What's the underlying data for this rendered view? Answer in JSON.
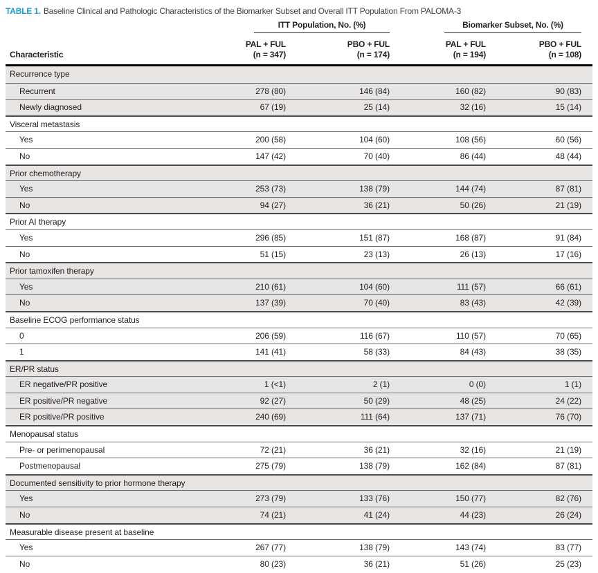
{
  "title": {
    "label": "TABLE 1.",
    "text": "Baseline Clinical and Pathologic Characteristics of the Biomarker Subset and Overall ITT Population From PALOMA-3"
  },
  "colors": {
    "accent_blue": "#1e9bd2",
    "shaded_row": "#e6e5e3",
    "rule_black": "#000000"
  },
  "table": {
    "group_headers": [
      {
        "label": "ITT Population, No. (%)"
      },
      {
        "label": "Biomarker Subset, No. (%)"
      }
    ],
    "column_headers": [
      {
        "line1": "Characteristic",
        "line2": ""
      },
      {
        "line1": "PAL + FUL",
        "line2": "(n = 347)"
      },
      {
        "line1": "PBO + FUL",
        "line2": "(n = 174)"
      },
      {
        "line1": "PAL + FUL",
        "line2": "(n = 194)"
      },
      {
        "line1": "PBO + FUL",
        "line2": "(n = 108)"
      }
    ],
    "groups": [
      {
        "name": "Recurrence type",
        "shaded": true,
        "rows": [
          {
            "label": "Recurrent",
            "values": [
              "278 (80)",
              "146 (84)",
              "160 (82)",
              "90 (83)"
            ]
          },
          {
            "label": "Newly diagnosed",
            "values": [
              "67 (19)",
              "25 (14)",
              "32 (16)",
              "15 (14)"
            ]
          }
        ]
      },
      {
        "name": "Visceral metastasis",
        "shaded": false,
        "rows": [
          {
            "label": "Yes",
            "values": [
              "200 (58)",
              "104 (60)",
              "108 (56)",
              "60 (56)"
            ]
          },
          {
            "label": "No",
            "values": [
              "147 (42)",
              "70 (40)",
              "86 (44)",
              "48 (44)"
            ]
          }
        ]
      },
      {
        "name": "Prior chemotherapy",
        "shaded": true,
        "rows": [
          {
            "label": "Yes",
            "values": [
              "253 (73)",
              "138 (79)",
              "144 (74)",
              "87 (81)"
            ]
          },
          {
            "label": "No",
            "values": [
              "94 (27)",
              "36 (21)",
              "50 (26)",
              "21 (19)"
            ]
          }
        ]
      },
      {
        "name": "Prior AI therapy",
        "shaded": false,
        "rows": [
          {
            "label": "Yes",
            "values": [
              "296 (85)",
              "151 (87)",
              "168 (87)",
              "91 (84)"
            ]
          },
          {
            "label": "No",
            "values": [
              "51 (15)",
              "23 (13)",
              "26 (13)",
              "17 (16)"
            ]
          }
        ]
      },
      {
        "name": "Prior tamoxifen therapy",
        "shaded": true,
        "rows": [
          {
            "label": "Yes",
            "values": [
              "210 (61)",
              "104 (60)",
              "111 (57)",
              "66 (61)"
            ]
          },
          {
            "label": "No",
            "values": [
              "137 (39)",
              "70 (40)",
              "83 (43)",
              "42 (39)"
            ]
          }
        ]
      },
      {
        "name": "Baseline ECOG performance status",
        "shaded": false,
        "rows": [
          {
            "label": "0",
            "values": [
              "206 (59)",
              "116 (67)",
              "110 (57)",
              "70 (65)"
            ]
          },
          {
            "label": "1",
            "values": [
              "141 (41)",
              "58 (33)",
              "84 (43)",
              "38 (35)"
            ]
          }
        ]
      },
      {
        "name": "ER/PR status",
        "shaded": true,
        "rows": [
          {
            "label": "ER negative/PR positive",
            "values": [
              "1 (<1)",
              "2 (1)",
              "0 (0)",
              "1 (1)"
            ]
          },
          {
            "label": "ER positive/PR negative",
            "values": [
              "92 (27)",
              "50 (29)",
              "48 (25)",
              "24 (22)"
            ]
          },
          {
            "label": "ER positive/PR positive",
            "values": [
              "240 (69)",
              "111 (64)",
              "137 (71)",
              "76 (70)"
            ]
          }
        ]
      },
      {
        "name": "Menopausal status",
        "shaded": false,
        "rows": [
          {
            "label": "Pre- or perimenopausal",
            "values": [
              "72 (21)",
              "36 (21)",
              "32 (16)",
              "21 (19)"
            ]
          },
          {
            "label": "Postmenopausal",
            "values": [
              "275 (79)",
              "138 (79)",
              "162 (84)",
              "87 (81)"
            ]
          }
        ]
      },
      {
        "name": "Documented sensitivity to prior hormone therapy",
        "shaded": true,
        "rows": [
          {
            "label": "Yes",
            "values": [
              "273 (79)",
              "133 (76)",
              "150 (77)",
              "82 (76)"
            ]
          },
          {
            "label": "No",
            "values": [
              "74 (21)",
              "41 (24)",
              "44 (23)",
              "26 (24)"
            ]
          }
        ]
      },
      {
        "name": "Measurable disease present at baseline",
        "shaded": false,
        "rows": [
          {
            "label": "Yes",
            "values": [
              "267 (77)",
              "138 (79)",
              "143 (74)",
              "83 (77)"
            ]
          },
          {
            "label": "No",
            "values": [
              "80 (23)",
              "36 (21)",
              "51 (26)",
              "25 (23)"
            ]
          }
        ]
      }
    ]
  }
}
